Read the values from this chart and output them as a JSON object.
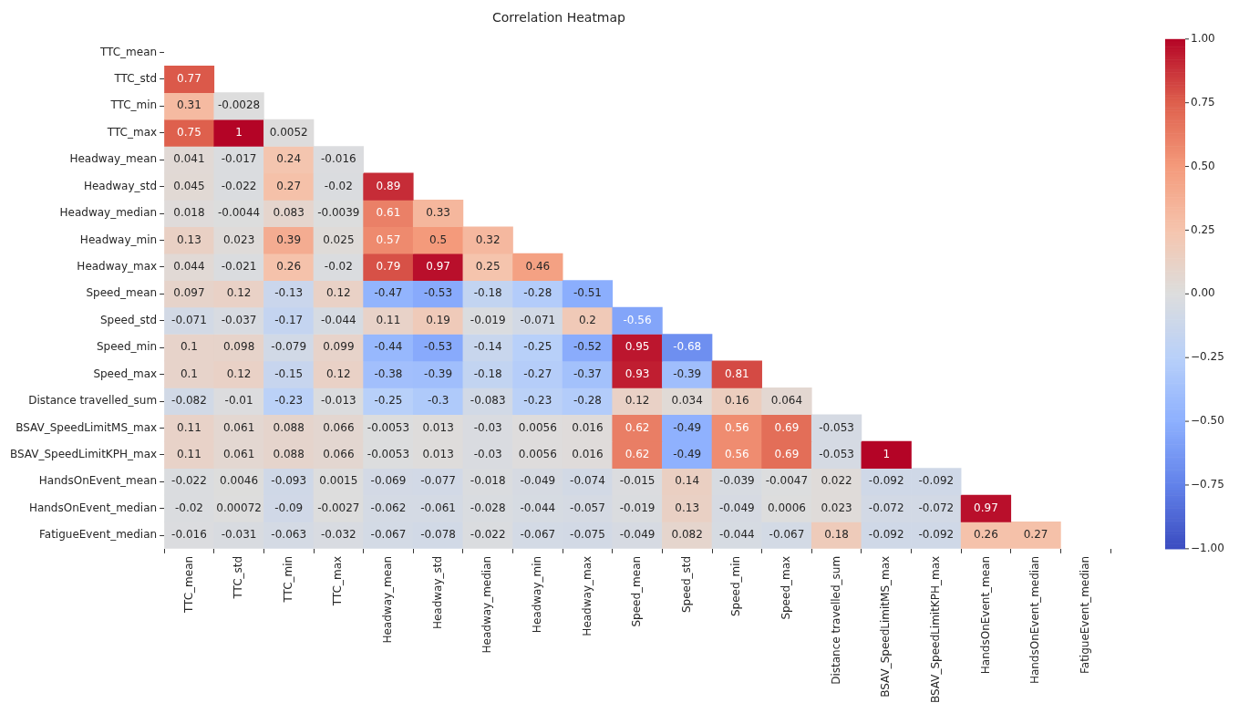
{
  "chart_data": {
    "type": "heatmap",
    "title": "Correlation Heatmap",
    "categories": [
      "TTC_mean",
      "TTC_std",
      "TTC_min",
      "TTC_max",
      "Headway_mean",
      "Headway_std",
      "Headway_median",
      "Headway_min",
      "Headway_max",
      "Speed_mean",
      "Speed_std",
      "Speed_min",
      "Speed_max",
      "Distance travelled_sum",
      "BSAV_SpeedLimitMS_max",
      "BSAV_SpeedLimitKPH_max",
      "HandsOnEvent_mean",
      "HandsOnEvent_median",
      "FatigueEvent_median"
    ],
    "y_categories": [
      "TTC_mean",
      "TTC_std",
      "TTC_min",
      "TTC_max",
      "Headway_mean",
      "Headway_std",
      "Headway_median",
      "Headway_min",
      "Headway_max",
      "Speed_mean",
      "Speed_std",
      "Speed_min",
      "Speed_max",
      "Distance travelled_sum",
      "BSAV_SpeedLimitMS_max",
      "BSAV_SpeedLimitKPH_max",
      "HandsOnEvent_mean",
      "HandsOnEvent_median",
      "FatigueEvent_median"
    ],
    "cells": [
      [
        null,
        null,
        null,
        null,
        null,
        null,
        null,
        null,
        null,
        null,
        null,
        null,
        null,
        null,
        null,
        null,
        null,
        null,
        null
      ],
      [
        0.77,
        null,
        null,
        null,
        null,
        null,
        null,
        null,
        null,
        null,
        null,
        null,
        null,
        null,
        null,
        null,
        null,
        null,
        null
      ],
      [
        0.31,
        -0.0028,
        null,
        null,
        null,
        null,
        null,
        null,
        null,
        null,
        null,
        null,
        null,
        null,
        null,
        null,
        null,
        null,
        null
      ],
      [
        0.75,
        1,
        0.0052,
        null,
        null,
        null,
        null,
        null,
        null,
        null,
        null,
        null,
        null,
        null,
        null,
        null,
        null,
        null,
        null
      ],
      [
        0.041,
        -0.017,
        0.24,
        -0.016,
        null,
        null,
        null,
        null,
        null,
        null,
        null,
        null,
        null,
        null,
        null,
        null,
        null,
        null,
        null
      ],
      [
        0.045,
        -0.022,
        0.27,
        -0.02,
        0.89,
        null,
        null,
        null,
        null,
        null,
        null,
        null,
        null,
        null,
        null,
        null,
        null,
        null,
        null
      ],
      [
        0.018,
        -0.0044,
        0.083,
        -0.0039,
        0.61,
        0.33,
        null,
        null,
        null,
        null,
        null,
        null,
        null,
        null,
        null,
        null,
        null,
        null,
        null
      ],
      [
        0.13,
        0.023,
        0.39,
        0.025,
        0.57,
        0.5,
        0.32,
        null,
        null,
        null,
        null,
        null,
        null,
        null,
        null,
        null,
        null,
        null,
        null
      ],
      [
        0.044,
        -0.021,
        0.26,
        -0.02,
        0.79,
        0.97,
        0.25,
        0.46,
        null,
        null,
        null,
        null,
        null,
        null,
        null,
        null,
        null,
        null,
        null
      ],
      [
        0.097,
        0.12,
        -0.13,
        0.12,
        -0.47,
        -0.53,
        -0.18,
        -0.28,
        -0.51,
        null,
        null,
        null,
        null,
        null,
        null,
        null,
        null,
        null,
        null
      ],
      [
        -0.071,
        -0.037,
        -0.17,
        -0.044,
        0.11,
        0.19,
        -0.019,
        -0.071,
        0.2,
        -0.56,
        null,
        null,
        null,
        null,
        null,
        null,
        null,
        null,
        null
      ],
      [
        0.1,
        0.098,
        -0.079,
        0.099,
        -0.44,
        -0.53,
        -0.14,
        -0.25,
        -0.52,
        0.95,
        -0.68,
        null,
        null,
        null,
        null,
        null,
        null,
        null,
        null
      ],
      [
        0.1,
        0.12,
        -0.15,
        0.12,
        -0.38,
        -0.39,
        -0.18,
        -0.27,
        -0.37,
        0.93,
        -0.39,
        0.81,
        null,
        null,
        null,
        null,
        null,
        null,
        null
      ],
      [
        -0.082,
        -0.01,
        -0.23,
        -0.013,
        -0.25,
        -0.3,
        -0.083,
        -0.23,
        -0.28,
        0.12,
        0.034,
        0.16,
        0.064,
        null,
        null,
        null,
        null,
        null,
        null
      ],
      [
        0.11,
        0.061,
        0.088,
        0.066,
        -0.0053,
        0.013,
        -0.03,
        0.0056,
        0.016,
        0.62,
        -0.49,
        0.56,
        0.69,
        -0.053,
        null,
        null,
        null,
        null,
        null
      ],
      [
        0.11,
        0.061,
        0.088,
        0.066,
        -0.0053,
        0.013,
        -0.03,
        0.0056,
        0.016,
        0.62,
        -0.49,
        0.56,
        0.69,
        -0.053,
        1,
        null,
        null,
        null,
        null
      ],
      [
        -0.022,
        0.0046,
        -0.093,
        0.0015,
        -0.069,
        -0.077,
        -0.018,
        -0.049,
        -0.074,
        -0.015,
        0.14,
        -0.039,
        -0.0047,
        0.022,
        -0.092,
        -0.092,
        null,
        null,
        null
      ],
      [
        -0.02,
        0.00072,
        -0.09,
        -0.0027,
        -0.062,
        -0.061,
        -0.028,
        -0.044,
        -0.057,
        -0.019,
        0.13,
        -0.049,
        0.0006,
        0.023,
        -0.072,
        -0.072,
        0.97,
        null,
        null
      ],
      [
        -0.016,
        -0.031,
        -0.063,
        -0.032,
        -0.067,
        -0.078,
        -0.022,
        -0.067,
        -0.075,
        -0.049,
        0.082,
        -0.044,
        -0.067,
        0.18,
        -0.092,
        -0.092,
        0.26,
        0.27,
        null
      ]
    ],
    "data_labels": true,
    "clim": [
      -1,
      1
    ],
    "cticks": [
      {
        "value": -1,
        "label": "−1.00"
      },
      {
        "value": -0.75,
        "label": "−0.75"
      },
      {
        "value": -0.5,
        "label": "−0.50"
      },
      {
        "value": -0.25,
        "label": "−0.25"
      },
      {
        "value": 0,
        "label": "0.00"
      },
      {
        "value": 0.25,
        "label": "0.25"
      },
      {
        "value": 0.5,
        "label": "0.50"
      },
      {
        "value": 0.75,
        "label": "0.75"
      },
      {
        "value": 1,
        "label": "1.00"
      }
    ]
  }
}
